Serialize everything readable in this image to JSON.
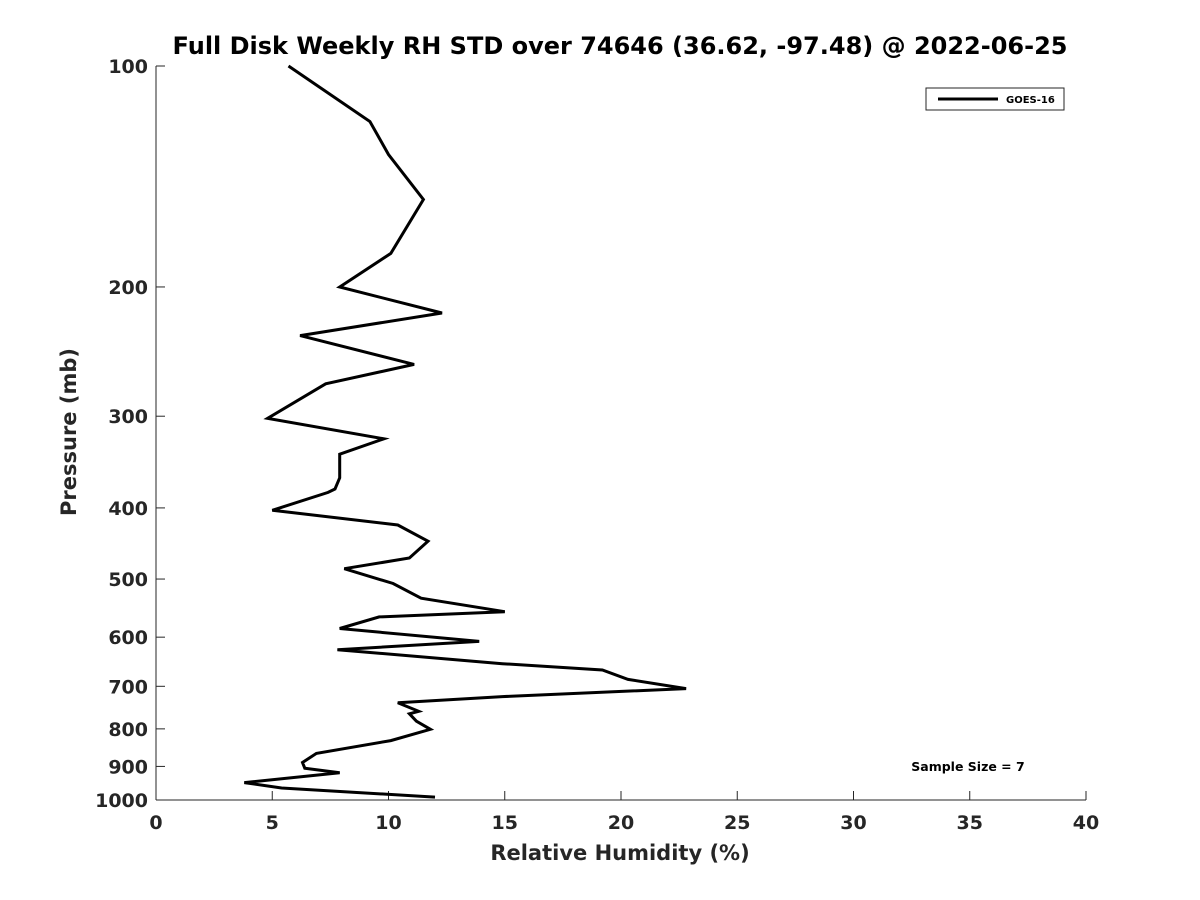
{
  "chart_data": {
    "type": "line",
    "title": "Full Disk Weekly RH STD over 74646 (36.62, -97.48) @ 2022-06-25",
    "xlabel": "Relative Humidity (%)",
    "ylabel": "Pressure (mb)",
    "xlim": [
      0,
      40
    ],
    "ylim": [
      100,
      1000
    ],
    "y_scale": "log",
    "y_reversed": true,
    "x_ticks": [
      "0",
      "5",
      "10",
      "15",
      "20",
      "25",
      "30",
      "35",
      "40"
    ],
    "y_ticks": [
      "100",
      "200",
      "300",
      "400",
      "500",
      "600",
      "700",
      "800",
      "900",
      "1000"
    ],
    "grid": false,
    "legend_position": "top-right",
    "annotation": "Sample Size = 7",
    "series": [
      {
        "name": "GOES-16",
        "color": "#000000",
        "x": [
          5.7,
          9.2,
          10.0,
          11.5,
          10.1,
          7.9,
          12.3,
          6.2,
          11.1,
          7.3,
          4.8,
          9.8,
          7.9,
          7.9,
          7.7,
          7.4,
          5.0,
          10.4,
          11.7,
          10.9,
          8.1,
          10.2,
          11.4,
          15.0,
          9.6,
          7.9,
          13.9,
          7.8,
          14.9,
          19.2,
          20.3,
          22.8,
          14.9,
          10.4,
          11.3,
          10.9,
          11.2,
          11.8,
          10.1,
          6.9,
          6.3,
          6.4,
          7.9,
          3.8,
          5.4,
          12.0
        ],
        "y": [
          100,
          119,
          132,
          152,
          180,
          200,
          217,
          233,
          255,
          271,
          302,
          322,
          338,
          364,
          377,
          381,
          403,
          422,
          444,
          468,
          484,
          507,
          531,
          554,
          563,
          584,
          608,
          624,
          652,
          665,
          685,
          705,
          723,
          737,
          757,
          763,
          781,
          801,
          830,
          864,
          889,
          905,
          918,
          947,
          963,
          991
        ]
      }
    ]
  }
}
